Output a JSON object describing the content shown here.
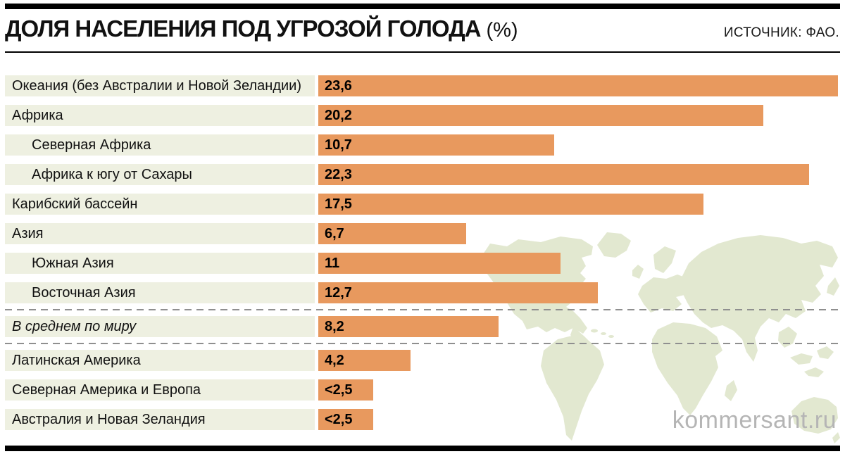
{
  "header": {
    "title": "ДОЛЯ НАСЕЛЕНИЯ ПОД УГРОЗОЙ ГОЛОДА",
    "title_unit": "(%)",
    "source": "ИСТОЧНИК: ФАО."
  },
  "watermark": "kommersant.ru",
  "chart_data": {
    "type": "bar",
    "orientation": "horizontal",
    "title": "Доля населения под угрозой голода (%)",
    "unit": "%",
    "source": "ФАО",
    "xlim": [
      0,
      23.6
    ],
    "max_value": 23.6,
    "rows": [
      {
        "label": "Океания (без Австралии и Новой Зеландии)",
        "value": 23.6,
        "display": "23,6",
        "indent": false,
        "italic": false
      },
      {
        "label": "Африка",
        "value": 20.2,
        "display": "20,2",
        "indent": false,
        "italic": false
      },
      {
        "label": "Северная Африка",
        "value": 10.7,
        "display": "10,7",
        "indent": true,
        "italic": false
      },
      {
        "label": "Африка к югу от Сахары",
        "value": 22.3,
        "display": "22,3",
        "indent": true,
        "italic": false
      },
      {
        "label": "Карибский бассейн",
        "value": 17.5,
        "display": "17,5",
        "indent": false,
        "italic": false
      },
      {
        "label": "Азия",
        "value": 6.7,
        "display": "6,7",
        "indent": false,
        "italic": false
      },
      {
        "label": "Южная Азия",
        "value": 11,
        "display": "11",
        "indent": true,
        "italic": false
      },
      {
        "label": "Восточная Азия",
        "value": 12.7,
        "display": "12,7",
        "indent": true,
        "italic": false
      },
      {
        "label": "В среднем по миру",
        "value": 8.2,
        "display": "8,2",
        "indent": false,
        "italic": true,
        "separator_before": true,
        "separator_after": true
      },
      {
        "label": "Латинская Америка",
        "value": 4.2,
        "display": "4,2",
        "indent": false,
        "italic": false
      },
      {
        "label": "Северная Америка и Европа",
        "value": 2.5,
        "display": "<2,5",
        "indent": false,
        "italic": false
      },
      {
        "label": "Австралия и Новая Зеландия",
        "value": 2.5,
        "display": "<2,5",
        "indent": false,
        "italic": false
      }
    ]
  },
  "colors": {
    "bar": "#e8995e",
    "label_band": "#eef0e1",
    "map": "#e2e8d0",
    "rule": "#000000",
    "dashed": "#8f8f8f",
    "watermark": "#b5b5b5"
  }
}
